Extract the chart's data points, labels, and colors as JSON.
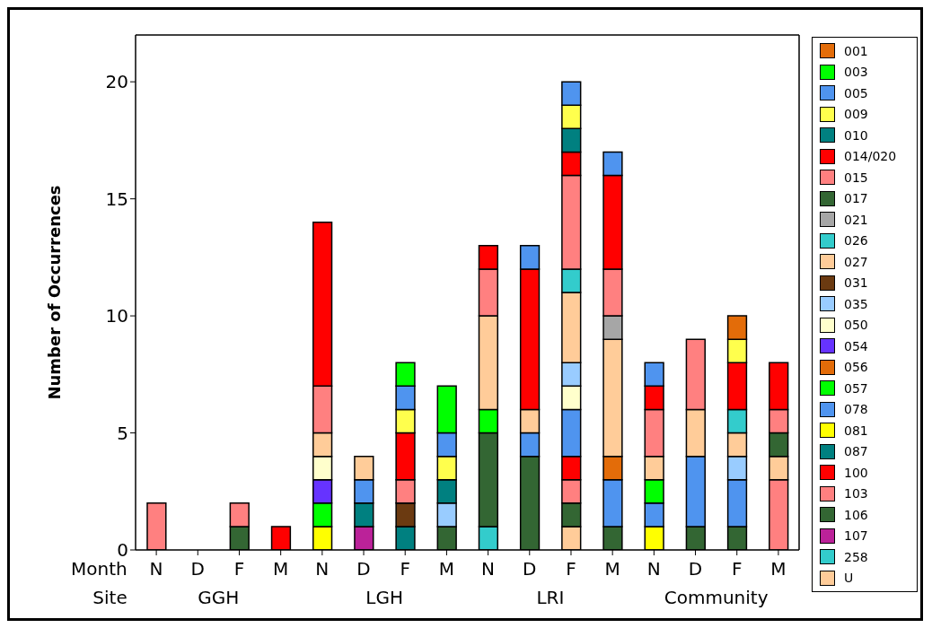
{
  "chart_data": {
    "type": "bar",
    "stacked": true,
    "ylabel": "Number of Occurrences",
    "categories": [
      "N",
      "D",
      "F",
      "M",
      "N",
      "D",
      "F",
      "M",
      "N",
      "D",
      "F",
      "M",
      "N",
      "D",
      "F",
      "M"
    ],
    "annotations": [
      "Month",
      "Site",
      "GGH",
      "LGH",
      "LRI",
      "Community"
    ],
    "ylim": [
      0,
      22
    ],
    "yticks": [
      0,
      5,
      10,
      15,
      20
    ],
    "grid": false,
    "legend": "right",
    "series": [
      {
        "name": "U",
        "color": "#ffcc99",
        "values": [
          null,
          null,
          null,
          null,
          null,
          null,
          null,
          null,
          null,
          null,
          1,
          null,
          null,
          null,
          null,
          null
        ]
      },
      {
        "name": "258",
        "color": "#33cccc",
        "values": [
          null,
          null,
          null,
          null,
          null,
          null,
          null,
          null,
          1,
          null,
          null,
          null,
          null,
          null,
          null,
          null
        ]
      },
      {
        "name": "107",
        "color": "#bb2299",
        "values": [
          null,
          null,
          null,
          null,
          null,
          1,
          null,
          null,
          null,
          null,
          null,
          null,
          null,
          null,
          null,
          null
        ]
      },
      {
        "name": "106",
        "color": "#336633",
        "values": [
          null,
          null,
          1,
          null,
          null,
          null,
          null,
          1,
          4,
          4,
          1,
          1,
          null,
          1,
          1,
          null
        ]
      },
      {
        "name": "103",
        "color": "#ff8080",
        "values": [
          null,
          null,
          null,
          null,
          null,
          null,
          null,
          null,
          null,
          null,
          1,
          null,
          null,
          null,
          null,
          3
        ]
      },
      {
        "name": "100",
        "color": "#ff0000",
        "values": [
          null,
          null,
          null,
          null,
          null,
          null,
          null,
          null,
          null,
          null,
          1,
          null,
          null,
          null,
          null,
          null
        ]
      },
      {
        "name": "087",
        "color": "#008080",
        "values": [
          null,
          null,
          null,
          null,
          null,
          1,
          1,
          null,
          null,
          null,
          null,
          null,
          null,
          null,
          null,
          null
        ]
      },
      {
        "name": "081",
        "color": "#ffff00",
        "values": [
          null,
          null,
          null,
          null,
          1,
          null,
          null,
          null,
          null,
          null,
          null,
          null,
          1,
          null,
          null,
          null
        ]
      },
      {
        "name": "078",
        "color": "#4f94ef",
        "values": [
          null,
          null,
          null,
          null,
          null,
          1,
          null,
          null,
          null,
          1,
          2,
          2,
          1,
          3,
          2,
          null
        ]
      },
      {
        "name": "057",
        "color": "#00ff00",
        "values": [
          null,
          null,
          null,
          null,
          1,
          null,
          null,
          null,
          1,
          null,
          null,
          null,
          1,
          null,
          null,
          null
        ]
      },
      {
        "name": "056",
        "color": "#e36c09",
        "values": [
          null,
          null,
          null,
          null,
          null,
          null,
          null,
          null,
          null,
          null,
          null,
          1,
          null,
          null,
          null,
          null
        ]
      },
      {
        "name": "054",
        "color": "#6633ff",
        "values": [
          null,
          null,
          null,
          null,
          1,
          null,
          null,
          null,
          null,
          null,
          null,
          null,
          null,
          null,
          null,
          null
        ]
      },
      {
        "name": "050",
        "color": "#ffffcc",
        "values": [
          null,
          null,
          null,
          null,
          1,
          null,
          null,
          null,
          null,
          null,
          1,
          null,
          null,
          null,
          null,
          null
        ]
      },
      {
        "name": "035",
        "color": "#99ccff",
        "values": [
          null,
          null,
          null,
          null,
          null,
          null,
          null,
          1,
          null,
          null,
          1,
          null,
          null,
          null,
          1,
          null
        ]
      },
      {
        "name": "031",
        "color": "#6b3a11",
        "values": [
          null,
          null,
          null,
          null,
          null,
          null,
          1,
          null,
          null,
          null,
          null,
          null,
          null,
          null,
          null,
          null
        ]
      },
      {
        "name": "027",
        "color": "#ffcc99",
        "values": [
          null,
          null,
          null,
          null,
          1,
          1,
          null,
          null,
          4,
          1,
          3,
          5,
          1,
          2,
          1,
          1
        ]
      },
      {
        "name": "026",
        "color": "#33cccc",
        "values": [
          null,
          null,
          null,
          null,
          null,
          null,
          null,
          null,
          null,
          null,
          1,
          null,
          null,
          null,
          1,
          null
        ]
      },
      {
        "name": "021",
        "color": "#a6a6a6",
        "values": [
          null,
          null,
          null,
          null,
          null,
          null,
          null,
          null,
          null,
          null,
          null,
          1,
          null,
          null,
          null,
          null
        ]
      },
      {
        "name": "017",
        "color": "#336633",
        "values": [
          null,
          null,
          null,
          null,
          null,
          null,
          null,
          null,
          null,
          null,
          null,
          null,
          null,
          null,
          null,
          1
        ]
      },
      {
        "name": "015",
        "color": "#ff8080",
        "values": [
          2,
          null,
          1,
          null,
          2,
          null,
          1,
          null,
          2,
          null,
          4,
          2,
          2,
          3,
          null,
          1
        ]
      },
      {
        "name": "014/020",
        "color": "#ff0000",
        "values": [
          null,
          null,
          null,
          1,
          7,
          null,
          2,
          null,
          1,
          6,
          1,
          4,
          1,
          null,
          2,
          2
        ]
      },
      {
        "name": "010",
        "color": "#008080",
        "values": [
          null,
          null,
          null,
          null,
          null,
          null,
          null,
          1,
          null,
          null,
          1,
          null,
          null,
          null,
          null,
          null
        ]
      },
      {
        "name": "009",
        "color": "#ffff4d",
        "values": [
          null,
          null,
          null,
          null,
          null,
          null,
          1,
          1,
          null,
          null,
          1,
          null,
          null,
          null,
          1,
          null
        ]
      },
      {
        "name": "005",
        "color": "#4f94ef",
        "values": [
          null,
          null,
          null,
          null,
          null,
          null,
          1,
          1,
          null,
          1,
          1,
          1,
          1,
          null,
          null,
          null
        ]
      },
      {
        "name": "003",
        "color": "#00ff00",
        "values": [
          null,
          null,
          null,
          null,
          null,
          null,
          1,
          2,
          null,
          null,
          null,
          null,
          null,
          null,
          null,
          null
        ]
      },
      {
        "name": "001",
        "color": "#e36c09",
        "values": [
          null,
          null,
          null,
          null,
          null,
          null,
          null,
          null,
          null,
          null,
          null,
          null,
          null,
          null,
          1,
          null
        ]
      }
    ]
  }
}
